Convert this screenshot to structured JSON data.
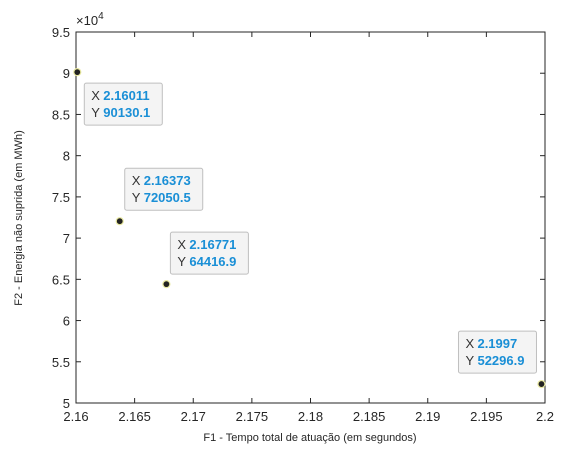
{
  "chart_data": {
    "type": "scatter",
    "xlabel": "F1 - Tempo total de atuação (em segundos)",
    "ylabel": "F2 - Energia não suprida (em MWh)",
    "xlim": [
      2.16,
      2.2
    ],
    "ylim": [
      5,
      9.5
    ],
    "x_ticks": [
      "2.16",
      "2.165",
      "2.17",
      "2.175",
      "2.18",
      "2.185",
      "2.19",
      "2.195",
      "2.2"
    ],
    "y_ticks": [
      "5",
      "5.5",
      "6",
      "6.5",
      "7",
      "7.5",
      "8",
      "8.5",
      "9",
      "9.5"
    ],
    "y_exponent_base": "×10",
    "y_exponent_power": "4",
    "grid": false,
    "colors": {
      "marker_fill": "#222222",
      "marker_edge": "#e8e8a0",
      "datatip_value": "#1a8fd6"
    },
    "points": [
      {
        "x": 2.16011,
        "y": 9.01301,
        "tip_x": "2.16011",
        "tip_y": "90130.1"
      },
      {
        "x": 2.16373,
        "y": 7.20505,
        "tip_x": "2.16373",
        "tip_y": "72050.5"
      },
      {
        "x": 2.16771,
        "y": 6.44169,
        "tip_x": "2.16771",
        "tip_y": "64416.9"
      },
      {
        "x": 2.1997,
        "y": 5.22969,
        "tip_x": "2.1997",
        "tip_y": "52296.9"
      }
    ],
    "datatip_prefix_x": "X",
    "datatip_prefix_y": "Y"
  }
}
